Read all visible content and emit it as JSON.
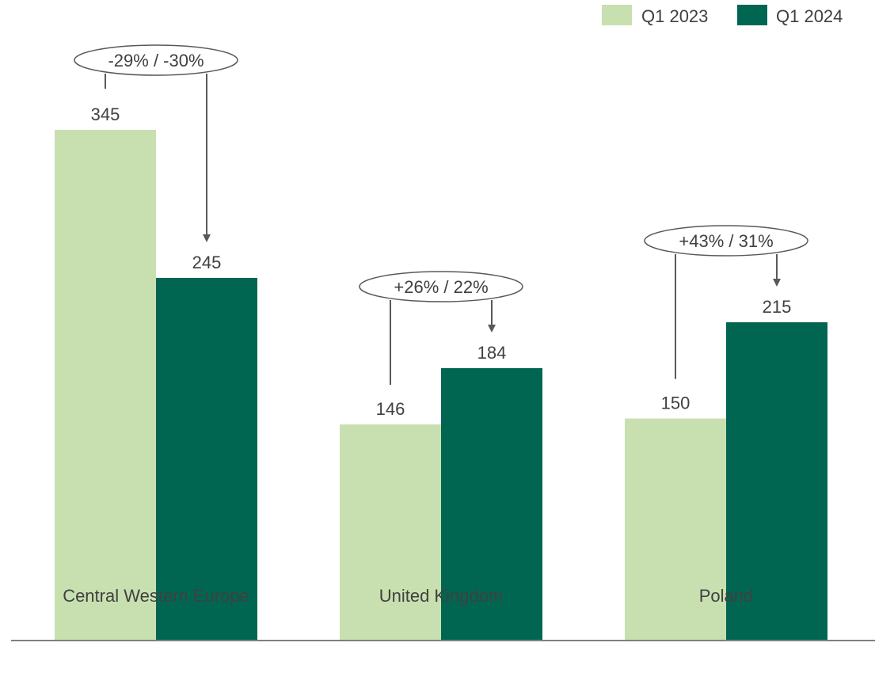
{
  "chart_data": {
    "type": "bar",
    "categories": [
      "Central Western Europe",
      "United Kingdom",
      "Poland"
    ],
    "series": [
      {
        "name": "Q1 2023",
        "values": [
          345,
          146,
          150
        ],
        "color": "#c8e0b0"
      },
      {
        "name": "Q1 2024",
        "values": [
          245,
          184,
          215
        ],
        "color": "#006652"
      }
    ],
    "ylim": [
      0,
      345
    ],
    "grid": false,
    "legend": "top-right",
    "annotations": [
      {
        "category": "Central Western Europe",
        "text": "-29% / -30%"
      },
      {
        "category": "United Kingdom",
        "text": "+26% / 22%"
      },
      {
        "category": "Poland",
        "text": "+43% / 31%"
      }
    ]
  }
}
